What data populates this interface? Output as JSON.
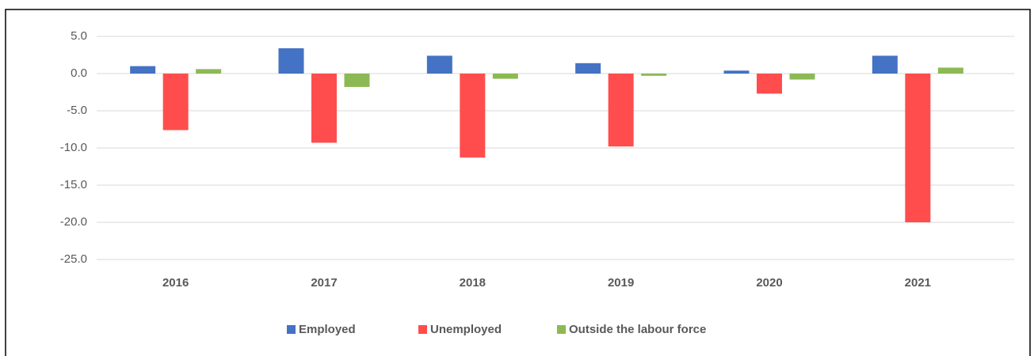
{
  "chart_data": {
    "type": "bar",
    "categories": [
      "2016",
      "2017",
      "2018",
      "2019",
      "2020",
      "2021"
    ],
    "series": [
      {
        "name": "Employed",
        "color": "#4472c4",
        "values": [
          1.0,
          3.4,
          2.4,
          1.4,
          0.4,
          2.4
        ]
      },
      {
        "name": "Unemployed",
        "color": "#ff4d4d",
        "values": [
          -7.6,
          -9.3,
          -11.3,
          -9.8,
          -2.7,
          -20.0
        ]
      },
      {
        "name": "Outside the labour force",
        "color": "#8db954",
        "values": [
          0.6,
          -1.8,
          -0.7,
          -0.3,
          -0.8,
          0.8
        ]
      }
    ],
    "ylim": [
      -25,
      5
    ],
    "yticks": [
      {
        "value": 5,
        "label": "5.0"
      },
      {
        "value": 0,
        "label": "0.0"
      },
      {
        "value": -5,
        "label": "-5.0"
      },
      {
        "value": -10,
        "label": "-10.0"
      },
      {
        "value": -15,
        "label": "-15.0"
      },
      {
        "value": -20,
        "label": "-20.0"
      },
      {
        "value": -25,
        "label": "-25.0"
      }
    ],
    "grid": true,
    "legend": "bottom"
  }
}
